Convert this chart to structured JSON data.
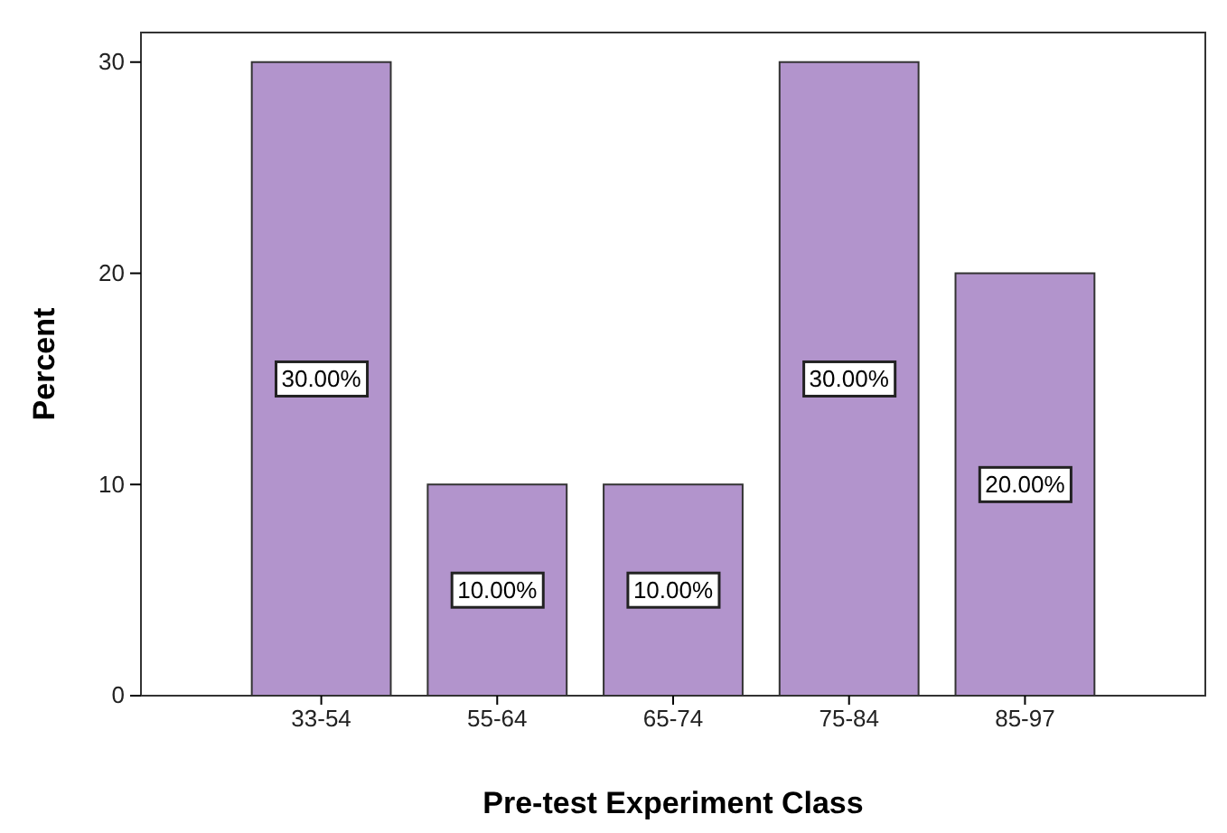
{
  "chart_data": {
    "type": "bar",
    "xlabel": "Pre-test Experiment Class",
    "ylabel": "Percent",
    "categories": [
      "33-54",
      "55-64",
      "65-74",
      "75-84",
      "85-97"
    ],
    "values": [
      30,
      10,
      10,
      30,
      20
    ],
    "value_labels": [
      "30.00%",
      "10.00%",
      "10.00%",
      "30.00%",
      "20.00%"
    ],
    "color": "#b294cc",
    "ylim": [
      0,
      31.4
    ],
    "yticks": [
      0,
      10,
      20,
      30
    ],
    "grid": false
  }
}
